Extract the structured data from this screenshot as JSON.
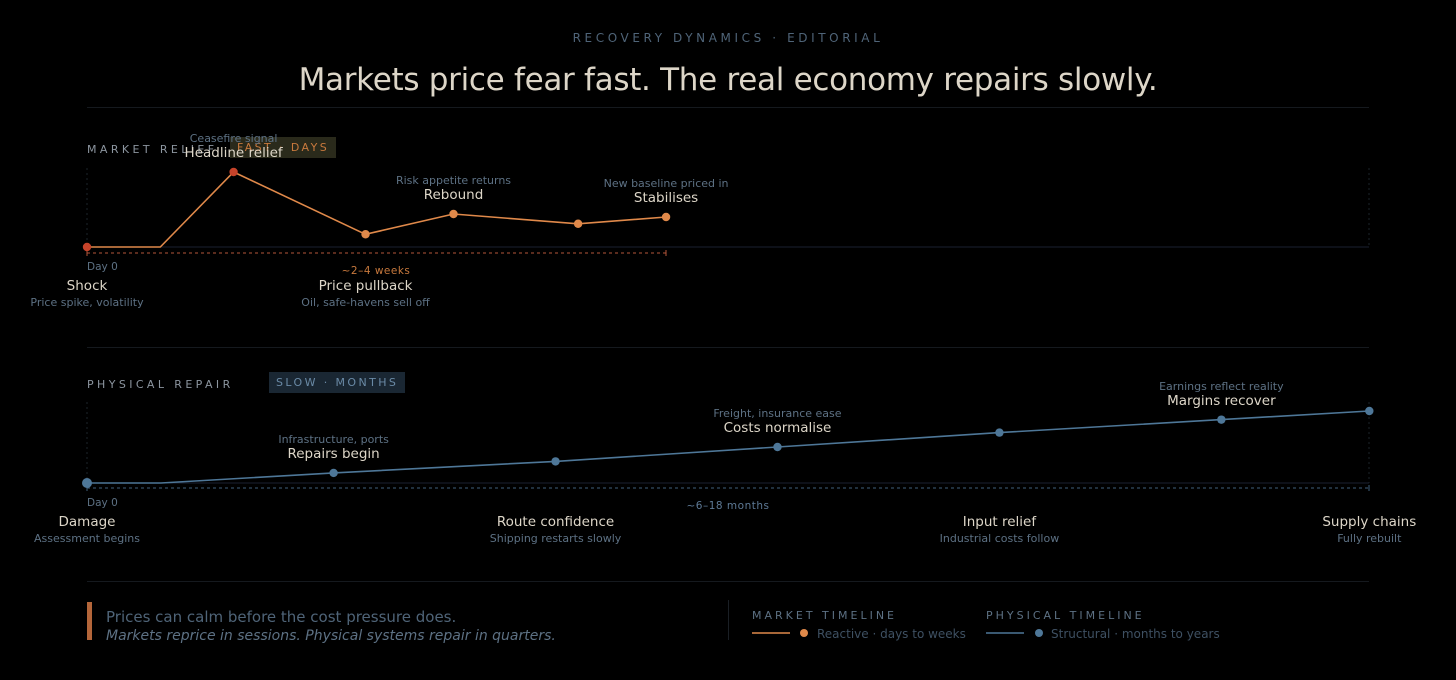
{
  "header": {
    "kicker": "RECOVERY DYNAMICS · EDITORIAL",
    "title": "Markets price fear fast. The real economy repairs slowly."
  },
  "colors": {
    "market": "#e0894a",
    "market_shock": "#c6432a",
    "physical": "#4e7798",
    "baseline_dash_market": "#b5563a",
    "baseline_dash_physical": "#3f607c"
  },
  "chart_data": [
    {
      "type": "line",
      "title": "MARKET RELIEF",
      "badge": "FAST · DAYS",
      "start_label": "Day 0",
      "range_label": "~2–4 weeks",
      "ylim": [
        0,
        100
      ],
      "points": [
        {
          "x": 0,
          "y": 0,
          "dot": true,
          "shock": true,
          "label": "Shock",
          "sub": "Price spike, volatility",
          "pos": "below"
        },
        {
          "x": 1,
          "y": 0,
          "dot": false
        },
        {
          "x": 2,
          "y": 100,
          "dot": true,
          "shock": true,
          "label": "Headline relief",
          "top": "Ceasefire signal",
          "pos": "above"
        },
        {
          "x": 3.8,
          "y": 17,
          "dot": true,
          "label": "Price pullback",
          "sub": "Oil, safe-havens sell off",
          "pos": "below"
        },
        {
          "x": 5,
          "y": 44,
          "dot": true,
          "label": "Rebound",
          "top": "Risk appetite returns",
          "pos": "above"
        },
        {
          "x": 6.7,
          "y": 31,
          "dot": true
        },
        {
          "x": 7.9,
          "y": 40,
          "dot": true,
          "label": "Stabilises",
          "top": "New baseline priced in",
          "pos": "above"
        }
      ]
    },
    {
      "type": "line",
      "title": "PHYSICAL REPAIR",
      "badge": "SLOW · MONTHS",
      "start_label": "Day 0",
      "range_label": "~6–18 months",
      "ylim": [
        0,
        100
      ],
      "points": [
        {
          "x": 0,
          "y": 0,
          "dot": true,
          "big": true,
          "label": "Damage",
          "sub": "Assessment begins",
          "pos": "below"
        },
        {
          "x": 0.6,
          "y": 0,
          "dot": false
        },
        {
          "x": 2,
          "y": 14,
          "dot": true,
          "label": "Repairs begin",
          "top": "Infrastructure, ports",
          "pos": "above"
        },
        {
          "x": 3.8,
          "y": 30,
          "dot": true,
          "label": "Route confidence",
          "sub": "Shipping restarts slowly",
          "pos": "below"
        },
        {
          "x": 5.6,
          "y": 50,
          "dot": true,
          "label": "Costs normalise",
          "top": "Freight, insurance ease",
          "pos": "above"
        },
        {
          "x": 7.4,
          "y": 70,
          "dot": true,
          "label": "Input relief",
          "sub": "Industrial costs follow",
          "pos": "below"
        },
        {
          "x": 9.2,
          "y": 88,
          "dot": true,
          "label": "Margins recover",
          "top": "Earnings reflect reality",
          "pos": "above"
        },
        {
          "x": 10.4,
          "y": 100,
          "dot": true,
          "label": "Supply chains",
          "sub": "Fully rebuilt",
          "pos": "below"
        }
      ]
    }
  ],
  "footer": {
    "main": "Prices can calm before the cost pressure does.",
    "sub": "Markets reprice in sessions. Physical systems repair in quarters.",
    "legend": [
      {
        "title": "MARKET TIMELINE",
        "text": "Reactive · days to weeks"
      },
      {
        "title": "PHYSICAL TIMELINE",
        "text": "Structural · months to years"
      }
    ]
  }
}
